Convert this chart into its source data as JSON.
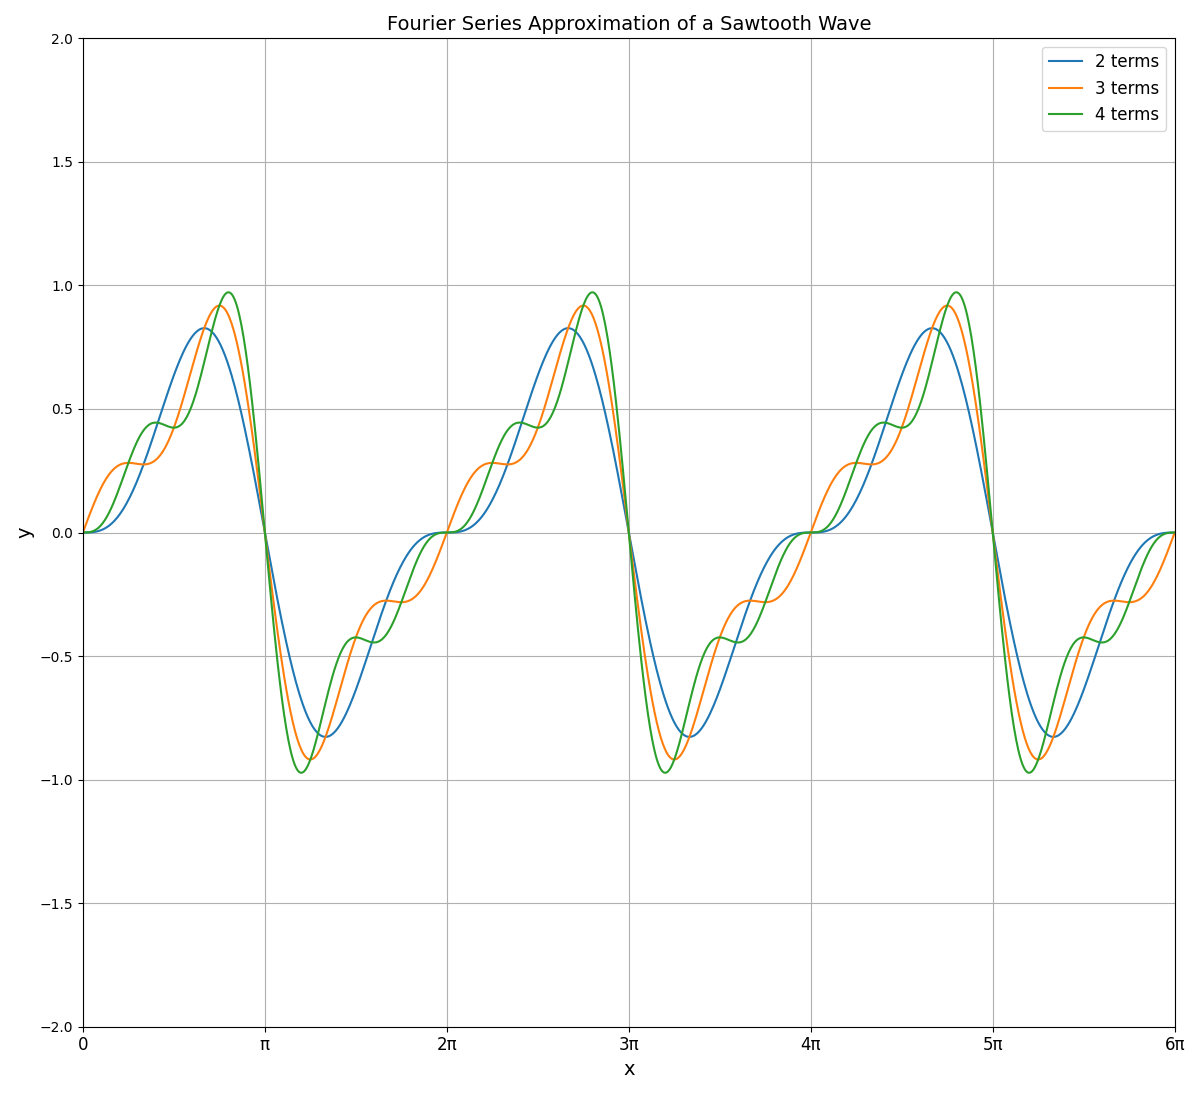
{
  "title": "Fourier Series Approximation of a Sawtooth Wave",
  "xlabel": "x",
  "ylabel": "y",
  "xlim": [
    0,
    18.84955592153876
  ],
  "ylim": [
    -2,
    2
  ],
  "x_start": 0,
  "x_end_factor": 6,
  "num_points": 1000,
  "terms": [
    2,
    3,
    4
  ],
  "line_width": 1.5,
  "colors": [
    "#1f77b4",
    "#ff7f0e",
    "#2ca02c"
  ],
  "legend_labels": [
    "2 terms",
    "3 terms",
    "4 terms"
  ],
  "grid": true,
  "pi_ticks": [
    0,
    1,
    2,
    3,
    4,
    5,
    6
  ],
  "pi_tick_labels": [
    "0",
    "π",
    "2π",
    "3π",
    "4π",
    "5π",
    "6π"
  ]
}
